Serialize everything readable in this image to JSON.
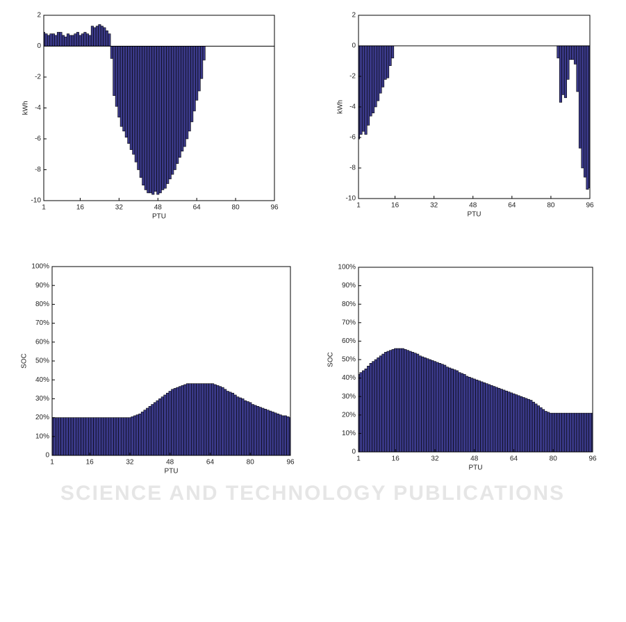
{
  "chart_data": [
    {
      "type": "bar",
      "xlabel": "PTU",
      "ylabel": "kWh",
      "color": "#3b3a8a",
      "x": [
        1,
        2,
        3,
        4,
        5,
        6,
        7,
        8,
        9,
        10,
        11,
        12,
        13,
        14,
        15,
        16,
        17,
        18,
        19,
        20,
        21,
        22,
        23,
        24,
        25,
        26,
        27,
        28,
        29,
        30,
        31,
        32,
        33,
        34,
        35,
        36,
        37,
        38,
        39,
        40,
        41,
        42,
        43,
        44,
        45,
        46,
        47,
        48,
        49,
        50,
        51,
        52,
        53,
        54,
        55,
        56,
        57,
        58,
        59,
        60,
        61,
        62,
        63,
        64,
        65,
        66,
        67,
        68,
        69,
        70,
        71,
        72,
        73,
        74,
        75,
        76,
        77,
        78,
        79,
        80,
        81,
        82,
        83,
        84,
        85,
        86,
        87,
        88,
        89,
        90,
        91,
        92,
        93,
        94,
        95,
        96
      ],
      "values": [
        0.9,
        0.8,
        0.7,
        0.8,
        0.8,
        0.7,
        0.9,
        0.9,
        0.7,
        0.6,
        0.8,
        0.7,
        0.7,
        0.8,
        0.9,
        0.7,
        0.8,
        0.9,
        0.8,
        0.7,
        1.3,
        1.2,
        1.3,
        1.4,
        1.3,
        1.2,
        1.0,
        0.8,
        -0.8,
        -3.2,
        -3.9,
        -4.6,
        -5.2,
        -5.5,
        -5.9,
        -6.3,
        -6.7,
        -7.0,
        -7.5,
        -8.0,
        -8.5,
        -9.0,
        -9.3,
        -9.5,
        -9.5,
        -9.6,
        -9.4,
        -9.6,
        -9.5,
        -9.3,
        -9.2,
        -8.9,
        -8.6,
        -8.3,
        -8.0,
        -7.6,
        -7.2,
        -6.8,
        -6.5,
        -6.0,
        -5.5,
        -4.9,
        -4.2,
        -3.5,
        -2.9,
        -2.1,
        -0.9,
        0,
        0,
        0,
        0,
        0,
        0,
        0,
        0,
        0,
        0,
        0,
        0,
        0,
        0,
        0,
        0,
        0,
        0,
        0,
        0,
        0,
        0,
        0,
        0,
        0,
        0,
        0,
        0,
        0
      ],
      "xlim": [
        1,
        96
      ],
      "xticks": [
        1,
        16,
        32,
        48,
        64,
        80,
        96
      ],
      "ylim": [
        -10,
        2
      ],
      "yticks": [
        -10,
        -8,
        -6,
        -4,
        -2,
        0,
        2
      ]
    },
    {
      "type": "bar",
      "xlabel": "PTU",
      "ylabel": "kWh",
      "color": "#3b3a8a",
      "x": [
        1,
        2,
        3,
        4,
        5,
        6,
        7,
        8,
        9,
        10,
        11,
        12,
        13,
        14,
        15,
        16,
        17,
        18,
        19,
        20,
        21,
        22,
        23,
        24,
        25,
        26,
        27,
        28,
        29,
        30,
        31,
        32,
        33,
        34,
        35,
        36,
        37,
        38,
        39,
        40,
        41,
        42,
        43,
        44,
        45,
        46,
        47,
        48,
        49,
        50,
        51,
        52,
        53,
        54,
        55,
        56,
        57,
        58,
        59,
        60,
        61,
        62,
        63,
        64,
        65,
        66,
        67,
        68,
        69,
        70,
        71,
        72,
        73,
        74,
        75,
        76,
        77,
        78,
        79,
        80,
        81,
        82,
        83,
        84,
        85,
        86,
        87,
        88,
        89,
        90,
        91,
        92,
        93,
        94,
        95,
        96
      ],
      "values": [
        -6.1,
        -5.8,
        -5.6,
        -5.8,
        -5.2,
        -4.6,
        -4.4,
        -4.0,
        -3.6,
        -3.1,
        -2.7,
        -2.2,
        -2.1,
        -1.3,
        -0.8,
        0,
        0,
        0,
        0,
        0,
        0,
        0,
        0,
        0,
        0,
        0,
        0,
        0,
        0,
        0,
        0,
        0,
        0,
        0,
        0,
        0,
        0,
        0,
        0,
        0,
        0,
        0,
        0,
        0,
        0,
        0,
        0,
        0,
        0,
        0,
        0,
        0,
        0,
        0,
        0,
        0,
        0,
        0,
        0,
        0,
        0,
        0,
        0,
        0,
        0,
        0,
        0,
        0,
        0,
        0,
        0,
        0,
        0,
        0,
        0,
        0,
        0,
        0,
        0,
        0,
        0,
        0,
        -0.8,
        -3.7,
        -3.2,
        -3.4,
        -2.2,
        -0.9,
        -0.9,
        -1.2,
        -3.0,
        -6.7,
        -8.0,
        -8.6,
        -9.4,
        -9.3
      ],
      "xlim": [
        1,
        96
      ],
      "xticks": [
        1,
        16,
        32,
        48,
        64,
        80,
        96
      ],
      "ylim": [
        -10,
        2
      ],
      "yticks": [
        -10,
        -8,
        -6,
        -4,
        -2,
        0,
        2
      ]
    },
    {
      "type": "bar",
      "xlabel": "PTU",
      "ylabel": "SOC",
      "color": "#3b3a8a",
      "x": [
        1,
        2,
        3,
        4,
        5,
        6,
        7,
        8,
        9,
        10,
        11,
        12,
        13,
        14,
        15,
        16,
        17,
        18,
        19,
        20,
        21,
        22,
        23,
        24,
        25,
        26,
        27,
        28,
        29,
        30,
        31,
        32,
        33,
        34,
        35,
        36,
        37,
        38,
        39,
        40,
        41,
        42,
        43,
        44,
        45,
        46,
        47,
        48,
        49,
        50,
        51,
        52,
        53,
        54,
        55,
        56,
        57,
        58,
        59,
        60,
        61,
        62,
        63,
        64,
        65,
        66,
        67,
        68,
        69,
        70,
        71,
        72,
        73,
        74,
        75,
        76,
        77,
        78,
        79,
        80,
        81,
        82,
        83,
        84,
        85,
        86,
        87,
        88,
        89,
        90,
        91,
        92,
        93,
        94,
        95,
        96
      ],
      "values": [
        20,
        20,
        20,
        20,
        20,
        20,
        20,
        20,
        20,
        20,
        20,
        20,
        20,
        20,
        20,
        20,
        20,
        20,
        20,
        20,
        20,
        20,
        20,
        20,
        20,
        20,
        20,
        20,
        20,
        20,
        20,
        20,
        20.5,
        21,
        21.5,
        22,
        23,
        24,
        25,
        26,
        27,
        28,
        29,
        30,
        31,
        32,
        33,
        34,
        35,
        35.5,
        36,
        36.5,
        37,
        37.5,
        38,
        38,
        38,
        38,
        38,
        38,
        38,
        38,
        38,
        38,
        38,
        37.5,
        37,
        36.5,
        36,
        35,
        34,
        33.5,
        33,
        32,
        31,
        30.5,
        30,
        29,
        28.5,
        28,
        27,
        26.5,
        26,
        25.5,
        25,
        24.5,
        24,
        23.5,
        23,
        22.5,
        22,
        21.5,
        21,
        21,
        20.5,
        20
      ],
      "xlim": [
        1,
        96
      ],
      "xticks": [
        1,
        16,
        32,
        48,
        64,
        80,
        96
      ],
      "ylim": [
        0,
        100
      ],
      "yticks": [
        0,
        {
          "value": 10,
          "label": "10%"
        },
        {
          "value": 20,
          "label": "20%"
        },
        {
          "value": 30,
          "label": "30%"
        },
        {
          "value": 40,
          "label": "40%"
        },
        {
          "value": 50,
          "label": "50%"
        },
        {
          "value": 60,
          "label": "60%"
        },
        {
          "value": 70,
          "label": "70%"
        },
        {
          "value": 80,
          "label": "80%"
        },
        {
          "value": 90,
          "label": "90%"
        },
        {
          "value": 100,
          "label": "100%"
        }
      ]
    },
    {
      "type": "bar",
      "xlabel": "PTU",
      "ylabel": "SOC",
      "color": "#3b3a8a",
      "x": [
        1,
        2,
        3,
        4,
        5,
        6,
        7,
        8,
        9,
        10,
        11,
        12,
        13,
        14,
        15,
        16,
        17,
        18,
        19,
        20,
        21,
        22,
        23,
        24,
        25,
        26,
        27,
        28,
        29,
        30,
        31,
        32,
        33,
        34,
        35,
        36,
        37,
        38,
        39,
        40,
        41,
        42,
        43,
        44,
        45,
        46,
        47,
        48,
        49,
        50,
        51,
        52,
        53,
        54,
        55,
        56,
        57,
        58,
        59,
        60,
        61,
        62,
        63,
        64,
        65,
        66,
        67,
        68,
        69,
        70,
        71,
        72,
        73,
        74,
        75,
        76,
        77,
        78,
        79,
        80,
        81,
        82,
        83,
        84,
        85,
        86,
        87,
        88,
        89,
        90,
        91,
        92,
        93,
        94,
        95,
        96
      ],
      "values": [
        42,
        43,
        44,
        45,
        46.5,
        48,
        49,
        50,
        51,
        52,
        53,
        54,
        54.5,
        55,
        55.5,
        56,
        56,
        56,
        56,
        55.5,
        55,
        54.5,
        54,
        53.5,
        53,
        52,
        51.5,
        51,
        50.5,
        50,
        49.5,
        49,
        48.5,
        48,
        47.5,
        47,
        46,
        45.5,
        45,
        44.5,
        44,
        43,
        42.5,
        42,
        41,
        40.5,
        40,
        39.5,
        39,
        38.5,
        38,
        37.5,
        37,
        36.5,
        36,
        35.5,
        35,
        34.5,
        34,
        33.5,
        33,
        32.5,
        32,
        31.5,
        31,
        30.5,
        30,
        29.5,
        29,
        28.5,
        28,
        27,
        26,
        25,
        24,
        23,
        22,
        21.5,
        21,
        21,
        21,
        21,
        21,
        21,
        21,
        21,
        21,
        21,
        21,
        21,
        21,
        21,
        21,
        21,
        21,
        21
      ],
      "xlim": [
        1,
        96
      ],
      "xticks": [
        1,
        16,
        32,
        48,
        64,
        80,
        96
      ],
      "ylim": [
        0,
        100
      ],
      "yticks": [
        0,
        {
          "value": 10,
          "label": "10%"
        },
        {
          "value": 20,
          "label": "20%"
        },
        {
          "value": 30,
          "label": "30%"
        },
        {
          "value": 40,
          "label": "40%"
        },
        {
          "value": 50,
          "label": "50%"
        },
        {
          "value": 60,
          "label": "60%"
        },
        {
          "value": 70,
          "label": "70%"
        },
        {
          "value": 80,
          "label": "80%"
        },
        {
          "value": 90,
          "label": "90%"
        },
        {
          "value": 100,
          "label": "100%"
        }
      ]
    }
  ],
  "watermark": "SCIENCE AND TECHNOLOGY PUBLICATIONS"
}
